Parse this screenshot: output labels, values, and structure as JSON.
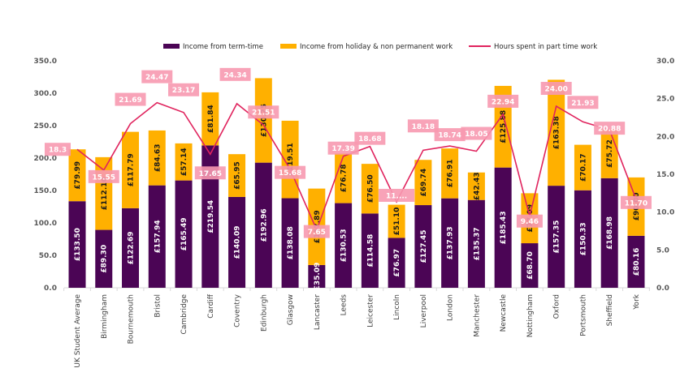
{
  "colors": {
    "term": "#4B0555",
    "holiday": "#FFB000",
    "hours": "#E0245E",
    "hours_label_bg": "#F799B0",
    "axis": "#D9D9D9"
  },
  "chart_data": {
    "type": "bar",
    "subtype": "stacked-bar-with-line-secondary-axis",
    "title": "",
    "xlabel": "",
    "ylabel": "",
    "legend_position": "top",
    "categories": [
      "UK Student Average",
      "Birmingham",
      "Bournemouth",
      "Bristol",
      "Cambridge",
      "Cardiff",
      "Coventry",
      "Edinburgh",
      "Glasgow",
      "Lancaster",
      "Leeds",
      "Leicester",
      "Lincoln",
      "Liverpool",
      "London",
      "Manchester",
      "Newcastle",
      "Nottingham",
      "Oxford",
      "Portsmouth",
      "Sheffield",
      "York"
    ],
    "series": [
      {
        "name": "Income from term-time",
        "type": "bar",
        "axis": "left",
        "values": [
          133.5,
          89.3,
          122.69,
          157.94,
          165.49,
          219.54,
          140.09,
          192.96,
          138.08,
          35.09,
          130.53,
          114.58,
          76.97,
          127.45,
          137.93,
          135.37,
          185.43,
          68.7,
          157.35,
          150.33,
          168.98,
          80.16
        ],
        "labels": [
          "£133.50",
          "£89.30",
          "£122.69",
          "£157.94",
          "£165.49",
          "£219.54",
          "£140.09",
          "£192.96",
          "£138.08",
          "£35.09",
          "£130.53",
          "£114.58",
          "£76.97",
          "£127.45",
          "£137.93",
          "£135.37",
          "£185.43",
          "£68.70",
          "£157.35",
          "£150.33",
          "£168.98",
          "£80.16"
        ]
      },
      {
        "name": "Income from holiday & non permanent work",
        "type": "bar",
        "axis": "left",
        "values": [
          79.99,
          112.1,
          117.79,
          84.63,
          57.14,
          81.84,
          65.95,
          130.25,
          119.51,
          117.89,
          76.78,
          76.5,
          51.1,
          69.74,
          76.91,
          42.43,
          125.88,
          77.09,
          163.38,
          70.17,
          75.72,
          90.0
        ],
        "labels": [
          "£79.99",
          "£112.10",
          "£117.79",
          "£84.63",
          "£57.14",
          "£81.84",
          "£65.95",
          "£130.25",
          "£119.51",
          "£117.89",
          "£76.78",
          "£76.50",
          "£51.10",
          "£69.74",
          "£76.91",
          "£42.43",
          "£125.88",
          "£77.09",
          "£163.38",
          "£70.17",
          "£75.72",
          "£90.00"
        ]
      },
      {
        "name": "Hours spent in part time work",
        "type": "line",
        "axis": "right",
        "values": [
          18.3,
          15.55,
          21.69,
          24.47,
          23.17,
          17.65,
          24.34,
          21.51,
          15.68,
          7.65,
          17.39,
          18.68,
          11.36,
          18.18,
          18.74,
          18.05,
          22.94,
          9.46,
          24.0,
          21.93,
          20.88,
          11.7
        ],
        "labels": [
          "18.3",
          "15.55",
          "21.69",
          "24.47",
          "23.17",
          "17.65",
          "24.34",
          "21.51",
          "15.68",
          "7.65",
          "17.39",
          "18.68",
          "11....",
          "18.18",
          "18.74",
          "18.05",
          "22.94",
          "9.46",
          "24.00",
          "21.93",
          "20.88",
          "11.70"
        ]
      }
    ],
    "y_left": {
      "ylim": [
        0,
        350
      ],
      "ticks": [
        "0.0",
        "50.0",
        "100.0",
        "150.0",
        "200.0",
        "250.0",
        "300.0",
        "350.0"
      ],
      "tick_values": [
        0,
        50,
        100,
        150,
        200,
        250,
        300,
        350
      ]
    },
    "y_right": {
      "ylim": [
        0,
        30
      ],
      "ticks": [
        "0.0",
        "5.0",
        "10.0",
        "15.0",
        "20.0",
        "25.0",
        "30.0"
      ],
      "tick_values": [
        0,
        5,
        10,
        15,
        20,
        25,
        30
      ]
    },
    "grid": false
  }
}
